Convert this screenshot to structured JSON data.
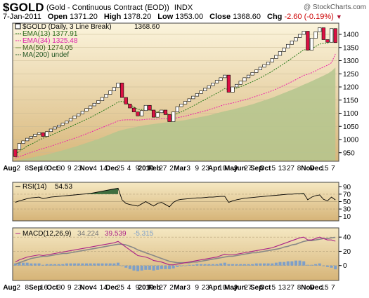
{
  "header": {
    "symbol": "$GOLD",
    "name": "(Gold - Continuous Contract (EOD))",
    "exchange": "INDX",
    "watermark": "@ StockCharts.com"
  },
  "quote": {
    "date": "7-Jan-2011",
    "open_label": "Open",
    "open": "1371.20",
    "high_label": "High",
    "high": "1378.20",
    "low_label": "Low",
    "low": "1353.00",
    "close_label": "Close",
    "close": "1368.60",
    "chg_label": "Chg",
    "chg": "-2.60 (-0.19%)",
    "arrow": "▼"
  },
  "legend": {
    "main": "$GOLD (Daily, 3 Line Break)",
    "main_value": "1368.60",
    "ema13": "EMA(13) 1377.91",
    "ema34": "EMA(34) 1325.48",
    "ma50": "MA(50) 1274.05",
    "ma200": "MA(200) undef"
  },
  "colors": {
    "panel_top": "#fbf4dc",
    "panel_bottom": "#d7b679",
    "up_box": "#ffffff",
    "down_box": "#dd1144",
    "ema13": "#2a7a1a",
    "ema34": "#ee22aa",
    "ma50_fill": "#b4c68e",
    "rsi": "#000000",
    "rsi_fill": "#3f6e3f",
    "macd": "#aa2288",
    "signal": "#888888",
    "hist": "#7d9fc9"
  },
  "chart_data": {
    "type": "line",
    "subtype": "3-line-break",
    "x_tick_labels": [
      "Aug",
      "2",
      "8",
      "Sep",
      "16",
      "Oct",
      "30",
      "9",
      "23",
      "Nov",
      "4",
      "14",
      "Dec",
      "25",
      "4",
      "9",
      "2010",
      "Feb",
      "27",
      "2",
      "Mar",
      "3",
      "9",
      "23",
      "Apr",
      "10",
      "May",
      "Jun",
      "27",
      "Sep",
      "Oct",
      "5",
      "13",
      "27",
      "8",
      "Nov",
      "Dec",
      "15",
      "7"
    ],
    "price": {
      "ylim": [
        920,
        1440
      ],
      "yticks": [
        950,
        1000,
        1050,
        1100,
        1150,
        1200,
        1250,
        1300,
        1350,
        1400
      ],
      "last": 1368.6,
      "bricks": [
        {
          "from": 935,
          "to": 962,
          "dir": "down"
        },
        {
          "from": 962,
          "to": 985,
          "dir": "up"
        },
        {
          "from": 985,
          "to": 995,
          "dir": "up"
        },
        {
          "from": 995,
          "to": 1005,
          "dir": "up"
        },
        {
          "from": 1005,
          "to": 1012,
          "dir": "up"
        },
        {
          "from": 1012,
          "to": 1020,
          "dir": "up"
        },
        {
          "from": 1020,
          "to": 1026,
          "dir": "up"
        },
        {
          "from": 1026,
          "to": 1012,
          "dir": "down"
        },
        {
          "from": 1012,
          "to": 1030,
          "dir": "up"
        },
        {
          "from": 1030,
          "to": 1040,
          "dir": "up"
        },
        {
          "from": 1040,
          "to": 1048,
          "dir": "up"
        },
        {
          "from": 1048,
          "to": 1055,
          "dir": "up"
        },
        {
          "from": 1055,
          "to": 1062,
          "dir": "up"
        },
        {
          "from": 1062,
          "to": 1070,
          "dir": "up"
        },
        {
          "from": 1070,
          "to": 1080,
          "dir": "up"
        },
        {
          "from": 1080,
          "to": 1090,
          "dir": "up"
        },
        {
          "from": 1090,
          "to": 1098,
          "dir": "up"
        },
        {
          "from": 1098,
          "to": 1108,
          "dir": "up"
        },
        {
          "from": 1108,
          "to": 1118,
          "dir": "up"
        },
        {
          "from": 1118,
          "to": 1128,
          "dir": "up"
        },
        {
          "from": 1128,
          "to": 1138,
          "dir": "up"
        },
        {
          "from": 1138,
          "to": 1148,
          "dir": "up"
        },
        {
          "from": 1148,
          "to": 1160,
          "dir": "up"
        },
        {
          "from": 1160,
          "to": 1172,
          "dir": "up"
        },
        {
          "from": 1172,
          "to": 1185,
          "dir": "up"
        },
        {
          "from": 1185,
          "to": 1198,
          "dir": "up"
        },
        {
          "from": 1198,
          "to": 1215,
          "dir": "up"
        },
        {
          "from": 1215,
          "to": 1160,
          "dir": "down"
        },
        {
          "from": 1160,
          "to": 1135,
          "dir": "down"
        },
        {
          "from": 1135,
          "to": 1120,
          "dir": "down"
        },
        {
          "from": 1120,
          "to": 1105,
          "dir": "down"
        },
        {
          "from": 1105,
          "to": 1090,
          "dir": "down"
        },
        {
          "from": 1090,
          "to": 1110,
          "dir": "up"
        },
        {
          "from": 1110,
          "to": 1130,
          "dir": "up"
        },
        {
          "from": 1130,
          "to": 1112,
          "dir": "down"
        },
        {
          "from": 1112,
          "to": 1085,
          "dir": "down"
        },
        {
          "from": 1085,
          "to": 1102,
          "dir": "up"
        },
        {
          "from": 1102,
          "to": 1112,
          "dir": "up"
        },
        {
          "from": 1112,
          "to": 1095,
          "dir": "down"
        },
        {
          "from": 1095,
          "to": 1068,
          "dir": "down"
        },
        {
          "from": 1068,
          "to": 1105,
          "dir": "up"
        },
        {
          "from": 1105,
          "to": 1125,
          "dir": "up"
        },
        {
          "from": 1125,
          "to": 1135,
          "dir": "up"
        },
        {
          "from": 1135,
          "to": 1145,
          "dir": "up"
        },
        {
          "from": 1145,
          "to": 1155,
          "dir": "up"
        },
        {
          "from": 1155,
          "to": 1165,
          "dir": "up"
        },
        {
          "from": 1165,
          "to": 1175,
          "dir": "up"
        },
        {
          "from": 1175,
          "to": 1185,
          "dir": "up"
        },
        {
          "from": 1185,
          "to": 1195,
          "dir": "up"
        },
        {
          "from": 1195,
          "to": 1205,
          "dir": "up"
        },
        {
          "from": 1205,
          "to": 1215,
          "dir": "up"
        },
        {
          "from": 1215,
          "to": 1225,
          "dir": "up"
        },
        {
          "from": 1225,
          "to": 1235,
          "dir": "up"
        },
        {
          "from": 1235,
          "to": 1245,
          "dir": "up"
        },
        {
          "from": 1245,
          "to": 1180,
          "dir": "down"
        },
        {
          "from": 1180,
          "to": 1200,
          "dir": "up"
        },
        {
          "from": 1200,
          "to": 1210,
          "dir": "up"
        },
        {
          "from": 1210,
          "to": 1222,
          "dir": "up"
        },
        {
          "from": 1222,
          "to": 1235,
          "dir": "up"
        },
        {
          "from": 1235,
          "to": 1245,
          "dir": "up"
        },
        {
          "from": 1245,
          "to": 1255,
          "dir": "up"
        },
        {
          "from": 1255,
          "to": 1265,
          "dir": "up"
        },
        {
          "from": 1265,
          "to": 1275,
          "dir": "up"
        },
        {
          "from": 1275,
          "to": 1285,
          "dir": "up"
        },
        {
          "from": 1285,
          "to": 1295,
          "dir": "up"
        },
        {
          "from": 1295,
          "to": 1308,
          "dir": "up"
        },
        {
          "from": 1308,
          "to": 1320,
          "dir": "up"
        },
        {
          "from": 1320,
          "to": 1335,
          "dir": "up"
        },
        {
          "from": 1335,
          "to": 1348,
          "dir": "up"
        },
        {
          "from": 1348,
          "to": 1362,
          "dir": "up"
        },
        {
          "from": 1362,
          "to": 1375,
          "dir": "up"
        },
        {
          "from": 1375,
          "to": 1388,
          "dir": "up"
        },
        {
          "from": 1388,
          "to": 1400,
          "dir": "up"
        },
        {
          "from": 1400,
          "to": 1412,
          "dir": "up"
        },
        {
          "from": 1412,
          "to": 1340,
          "dir": "down"
        },
        {
          "from": 1340,
          "to": 1385,
          "dir": "up"
        },
        {
          "from": 1385,
          "to": 1410,
          "dir": "up"
        },
        {
          "from": 1410,
          "to": 1425,
          "dir": "up"
        },
        {
          "from": 1425,
          "to": 1380,
          "dir": "down"
        },
        {
          "from": 1380,
          "to": 1370,
          "dir": "down"
        },
        {
          "from": 1370,
          "to": 1422,
          "dir": "up"
        },
        {
          "from": 1422,
          "to": 1368.6,
          "dir": "down"
        }
      ],
      "ema13": [
        945,
        955,
        965,
        975,
        982,
        990,
        998,
        1005,
        1010,
        1016,
        1023,
        1030,
        1036,
        1042,
        1049,
        1056,
        1063,
        1070,
        1077,
        1084,
        1092,
        1100,
        1108,
        1116,
        1124,
        1133,
        1143,
        1145,
        1140,
        1133,
        1124,
        1115,
        1114,
        1117,
        1114,
        1107,
        1105,
        1106,
        1102,
        1093,
        1094,
        1099,
        1105,
        1112,
        1120,
        1128,
        1136,
        1144,
        1152,
        1160,
        1168,
        1176,
        1185,
        1194,
        1190,
        1192,
        1196,
        1201,
        1207,
        1213,
        1220,
        1227,
        1235,
        1243,
        1251,
        1260,
        1269,
        1279,
        1289,
        1299,
        1309,
        1320,
        1331,
        1342,
        1340,
        1346,
        1354,
        1363,
        1366,
        1367,
        1374,
        1377.91
      ],
      "ema34": [
        930,
        935,
        940,
        946,
        951,
        956,
        961,
        966,
        970,
        975,
        980,
        985,
        990,
        995,
        1000,
        1005,
        1010,
        1016,
        1022,
        1028,
        1034,
        1040,
        1046,
        1052,
        1058,
        1064,
        1071,
        1074,
        1075,
        1075,
        1075,
        1074,
        1075,
        1077,
        1078,
        1077,
        1078,
        1079,
        1079,
        1078,
        1080,
        1083,
        1086,
        1089,
        1093,
        1097,
        1101,
        1105,
        1109,
        1113,
        1118,
        1123,
        1128,
        1133,
        1136,
        1139,
        1143,
        1147,
        1151,
        1155,
        1160,
        1165,
        1170,
        1175,
        1180,
        1186,
        1192,
        1199,
        1206,
        1213,
        1220,
        1228,
        1236,
        1244,
        1248,
        1254,
        1261,
        1269,
        1276,
        1283,
        1292,
        1325.48
      ],
      "ma50": [
        920,
        922,
        925,
        928,
        931,
        934,
        937,
        940,
        943,
        947,
        951,
        955,
        959,
        963,
        968,
        972,
        977,
        982,
        987,
        992,
        997,
        1002,
        1008,
        1014,
        1020,
        1026,
        1032,
        1036,
        1040,
        1043,
        1046,
        1049,
        1052,
        1055,
        1057,
        1059,
        1061,
        1063,
        1065,
        1066,
        1068,
        1070,
        1072,
        1074,
        1077,
        1080,
        1083,
        1086,
        1089,
        1092,
        1096,
        1100,
        1104,
        1108,
        1111,
        1114,
        1118,
        1122,
        1126,
        1130,
        1134,
        1139,
        1144,
        1149,
        1154,
        1159,
        1165,
        1171,
        1177,
        1183,
        1189,
        1195,
        1202,
        1209,
        1215,
        1222,
        1229,
        1236,
        1243,
        1250,
        1260,
        1274.05
      ]
    },
    "rsi": {
      "label": "RSI(14)",
      "value": "54.53",
      "ylim": [
        0,
        100
      ],
      "yticks": [
        90,
        70,
        50,
        30,
        10
      ],
      "values": [
        48,
        52,
        55,
        58,
        60,
        61,
        62,
        58,
        60,
        62,
        63,
        64,
        65,
        66,
        67,
        68,
        69,
        70,
        71,
        72,
        74,
        76,
        78,
        80,
        82,
        84,
        86,
        55,
        45,
        42,
        40,
        38,
        44,
        50,
        44,
        38,
        45,
        48,
        42,
        36,
        48,
        54,
        56,
        57,
        58,
        59,
        60,
        60,
        61,
        62,
        62,
        63,
        64,
        64,
        48,
        52,
        55,
        57,
        59,
        60,
        61,
        62,
        63,
        64,
        65,
        66,
        67,
        68,
        69,
        70,
        70,
        71,
        71,
        72,
        55,
        62,
        66,
        68,
        56,
        52,
        62,
        54.53
      ]
    },
    "macd": {
      "label": "MACD(12,26,9)",
      "macd": "34.224",
      "signal": "39.539",
      "hist": "-5.315",
      "ylim": [
        -20,
        52
      ],
      "yticks": [
        40,
        20,
        0
      ],
      "macd_values": [
        5,
        8,
        10,
        12,
        13,
        14,
        15,
        14,
        15,
        16,
        17,
        18,
        19,
        20,
        21,
        22,
        23,
        24,
        25,
        26,
        27,
        28,
        29,
        30,
        31,
        32,
        34,
        30,
        26,
        22,
        18,
        14,
        13,
        12,
        10,
        7,
        6,
        5,
        3,
        1,
        1,
        2,
        3,
        4,
        5,
        6,
        7,
        8,
        9,
        10,
        11,
        12,
        14,
        16,
        15,
        15,
        16,
        17,
        18,
        19,
        20,
        21,
        22,
        23,
        24,
        25,
        27,
        29,
        31,
        33,
        35,
        37,
        39,
        40,
        36,
        36,
        38,
        40,
        38,
        36,
        36,
        34.224
      ],
      "signal_values": [
        2,
        4,
        6,
        8,
        10,
        11,
        12,
        13,
        13,
        14,
        15,
        16,
        17,
        17,
        18,
        19,
        20,
        21,
        22,
        23,
        24,
        25,
        26,
        27,
        28,
        29,
        30,
        30,
        29,
        27,
        25,
        22,
        20,
        18,
        16,
        14,
        12,
        10,
        8,
        6,
        5,
        4,
        4,
        4,
        4,
        5,
        5,
        6,
        7,
        8,
        9,
        10,
        11,
        12,
        13,
        13,
        14,
        15,
        16,
        17,
        18,
        18,
        19,
        20,
        21,
        22,
        23,
        24,
        26,
        27,
        29,
        30,
        32,
        34,
        35,
        35,
        36,
        37,
        38,
        38,
        39,
        39.539
      ]
    }
  }
}
